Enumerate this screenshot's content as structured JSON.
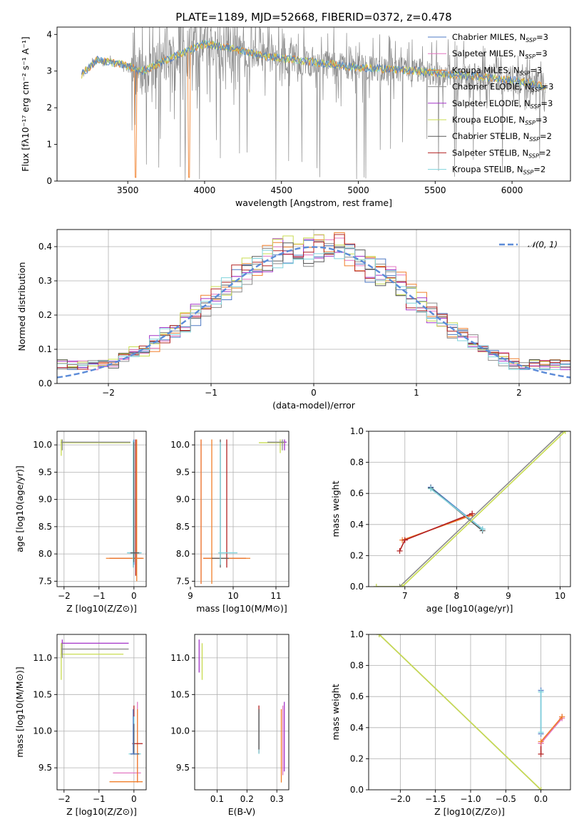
{
  "figure_title": "PLATE=1189, MJD=52668, FIBERID=0372, z=0.478",
  "models": [
    {
      "name": "Chabrier MILES, N",
      "sub": "SSP",
      "tail": "=3",
      "color": "#4e79c4"
    },
    {
      "name": "Salpeter MILES, N",
      "sub": "SSP",
      "tail": "=3",
      "color": "#e377c2"
    },
    {
      "name": "Kroupa MILES, N",
      "sub": "SSP",
      "tail": "=3",
      "color": "#f07f2a"
    },
    {
      "name": "Chabrier ELODIE, N",
      "sub": "SSP",
      "tail": "=3",
      "color": "#8c8c8c"
    },
    {
      "name": "Salpeter ELODIE, N",
      "sub": "SSP",
      "tail": "=3",
      "color": "#a333c8"
    },
    {
      "name": "Kroupa ELODIE, N",
      "sub": "SSP",
      "tail": "=3",
      "color": "#c8dc50"
    },
    {
      "name": "Chabrier STELIB, N",
      "sub": "SSP",
      "tail": "=2",
      "color": "#595959"
    },
    {
      "name": "Salpeter STELIB, N",
      "sub": "SSP",
      "tail": "=2",
      "color": "#b22222"
    },
    {
      "name": "Kroupa STELIB, N",
      "sub": "SSP",
      "tail": "=2",
      "color": "#7fd3dc"
    }
  ],
  "chart_data": [
    {
      "id": "spectrum",
      "type": "line",
      "xlabel": "wavelength [Angstrom, rest frame]",
      "ylabel": "Flux [fλ10⁻¹⁷ erg cm⁻² s⁻¹ A⁻¹]",
      "xlim": [
        3040,
        6380
      ],
      "ylim": [
        0,
        4.2
      ],
      "xticks": [
        3500,
        4000,
        4500,
        5000,
        5500,
        6000
      ],
      "yticks": [
        0,
        1,
        2,
        3,
        4
      ],
      "grid": false,
      "legend": "upper-right",
      "continuum": {
        "x": [
          3200,
          3300,
          3450,
          3600,
          3800,
          4000,
          4200,
          4400,
          4600,
          4800,
          5000,
          5200,
          5400,
          5600,
          5800,
          6000,
          6200
        ],
        "y": [
          2.9,
          3.3,
          3.2,
          3.0,
          3.4,
          3.75,
          3.6,
          3.4,
          3.3,
          3.2,
          3.1,
          3.05,
          3.0,
          2.9,
          2.85,
          2.75,
          2.6
        ]
      }
    },
    {
      "id": "residuals",
      "type": "step",
      "xlabel": "(data-model)/error",
      "ylabel": "Normed distribution",
      "xlim": [
        -2.5,
        2.5
      ],
      "ylim": [
        0,
        0.45
      ],
      "xticks": [
        -2,
        -1,
        0,
        1,
        2
      ],
      "yticks": [
        0.0,
        0.1,
        0.2,
        0.3,
        0.4
      ],
      "grid": true,
      "legend": "upper-right",
      "normal_label": "𝒩(0, 1)",
      "normal_color": "#5b8bd8"
    },
    {
      "id": "age_vs_Z",
      "type": "errorbar",
      "xlabel": "Z [log10(Z/Z⊙)]",
      "ylabel": "age  [log10(age/yr)]",
      "xlim": [
        -2.2,
        0.35
      ],
      "ylim": [
        7.4,
        10.25
      ],
      "xticks": [
        -2,
        -1,
        0
      ],
      "yticks": [
        7.5,
        8.0,
        8.5,
        9.0,
        9.5,
        10.0
      ],
      "grid": true
    },
    {
      "id": "age_vs_mass",
      "type": "errorbar",
      "xlabel": "mass [log10(M/M⊙)]",
      "ylabel": "",
      "xlim": [
        9.1,
        11.3
      ],
      "ylim": [
        7.4,
        10.25
      ],
      "xticks": [
        9,
        10,
        11
      ],
      "yticks": [
        7.5,
        8.0,
        8.5,
        9.0,
        9.5,
        10.0
      ],
      "grid": true
    },
    {
      "id": "weight_vs_age",
      "type": "line",
      "xlabel": "age  [log10(age/yr)]",
      "ylabel": "mass weight",
      "xlim": [
        6.3,
        10.2
      ],
      "ylim": [
        0,
        1
      ],
      "xticks": [
        7,
        8,
        9,
        10
      ],
      "yticks": [
        0.0,
        0.2,
        0.4,
        0.6,
        0.8,
        1.0
      ],
      "grid": true,
      "points": [
        {
          "x": [
            7.5,
            8.5
          ],
          "y": [
            0.64,
            0.37
          ],
          "color": "#4e79c4"
        },
        {
          "x": [
            7.5,
            8.5
          ],
          "y": [
            0.635,
            0.36
          ],
          "color": "#595959"
        },
        {
          "x": [
            7.0,
            8.3
          ],
          "y": [
            0.3,
            0.47
          ],
          "color": "#e377c2"
        },
        {
          "x": [
            6.95,
            8.3
          ],
          "y": [
            0.3,
            0.46
          ],
          "color": "#f07f2a"
        },
        {
          "x": [
            6.9,
            7.0,
            8.3
          ],
          "y": [
            0.23,
            0.3,
            0.47
          ],
          "color": "#b22222"
        },
        {
          "x": [
            7.5,
            8.5
          ],
          "y": [
            0.63,
            0.37
          ],
          "color": "#7fd3dc"
        },
        {
          "x": [
            6.45,
            6.9,
            10.05
          ],
          "y": [
            0,
            0,
            1
          ],
          "color": "#8c8c8c"
        },
        {
          "x": [
            6.45,
            6.95,
            10.1
          ],
          "y": [
            0,
            0,
            1
          ],
          "color": "#c8dc50"
        }
      ]
    },
    {
      "id": "mass_vs_Z",
      "type": "errorbar",
      "xlabel": "Z [log10(Z/Z⊙)]",
      "ylabel": "mass [log10(M/M⊙)]",
      "xlim": [
        -2.2,
        0.35
      ],
      "ylim": [
        9.2,
        11.32
      ],
      "xticks": [
        -2,
        -1,
        0
      ],
      "yticks": [
        9.5,
        10.0,
        10.5,
        11.0
      ],
      "grid": true
    },
    {
      "id": "mass_vs_ebv",
      "type": "errorbar",
      "xlabel": "E(B-V)",
      "ylabel": "",
      "xlim": [
        0.025,
        0.34
      ],
      "ylim": [
        9.2,
        11.32
      ],
      "xticks": [
        0.1,
        0.2,
        0.3
      ],
      "yticks": [
        9.5,
        10.0,
        10.5,
        11.0
      ],
      "grid": true
    },
    {
      "id": "weight_vs_Z",
      "type": "line",
      "xlabel": "Z [log10(Z/Z⊙)]",
      "ylabel": "mass weight",
      "xlim": [
        -2.45,
        0.42
      ],
      "ylim": [
        0,
        1
      ],
      "xticks": [
        -2.0,
        -1.5,
        -1.0,
        -0.5,
        0.0
      ],
      "yticks": [
        0.0,
        0.2,
        0.4,
        0.6,
        0.8,
        1.0
      ],
      "grid": true,
      "points": [
        {
          "x": [
            -2.3,
            0.0
          ],
          "y": [
            1.0,
            0.0
          ],
          "color": "#8c8c8c"
        },
        {
          "x": [
            -2.3,
            0.0
          ],
          "y": [
            1.0,
            0.0
          ],
          "color": "#c8dc50"
        },
        {
          "x": [
            0.0,
            0.0
          ],
          "y": [
            0.64,
            0.36
          ],
          "color": "#4e79c4"
        },
        {
          "x": [
            0.0,
            0.0
          ],
          "y": [
            0.63,
            0.37
          ],
          "color": "#7fd3dc"
        },
        {
          "x": [
            0.0,
            0.0,
            0.3
          ],
          "y": [
            0.23,
            0.3,
            0.47
          ],
          "color": "#b22222"
        },
        {
          "x": [
            0.0,
            0.3
          ],
          "y": [
            0.3,
            0.46
          ],
          "color": "#e377c2"
        },
        {
          "x": [
            0.0,
            0.3
          ],
          "y": [
            0.31,
            0.47
          ],
          "color": "#f07f2a"
        }
      ]
    }
  ]
}
